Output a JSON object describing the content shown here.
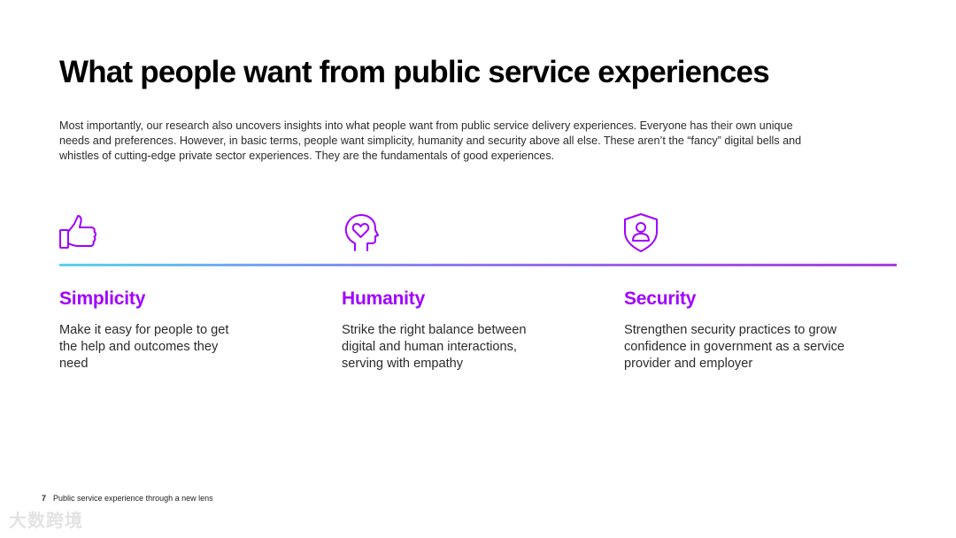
{
  "page": {
    "title": "What people want from public service experiences",
    "intro": "Most importantly, our research also uncovers insights into what people want from public service delivery experiences. Everyone has their own unique needs and preferences. However, in basic terms, people want simplicity, humanity and security above all else. These aren’t the “fancy” digital bells and whistles of cutting-edge private sector experiences. They are the fundamentals of good experiences."
  },
  "pillars": [
    {
      "icon": "thumbs-up-icon",
      "heading": "Simplicity",
      "text": "Make it easy for people to get the help and outcomes they need"
    },
    {
      "icon": "head-heart-icon",
      "heading": "Humanity",
      "text": "Strike the right balance between digital and human interactions, serving with empathy"
    },
    {
      "icon": "shield-user-icon",
      "heading": "Security",
      "text": "Strengthen security practices to grow confidence in government as a service provider and employer"
    }
  ],
  "footer": {
    "page_number": "7",
    "text": "Public service experience through a new lens"
  },
  "watermark": {
    "text": "大数跨境"
  },
  "colors": {
    "accent": "#a100ff",
    "gradient_start": "#5ad3f0",
    "gradient_end": "#a83ee6"
  }
}
